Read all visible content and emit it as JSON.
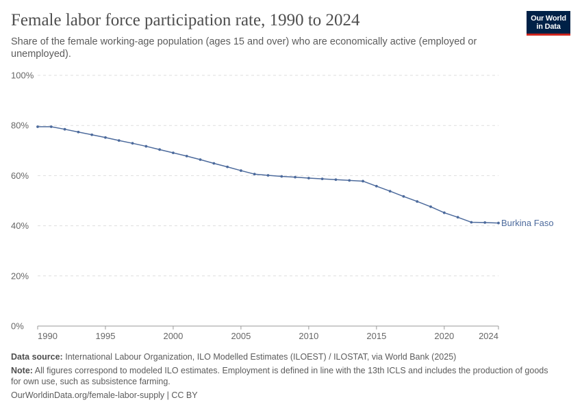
{
  "header": {
    "title": "Female labor force participation rate, 1990 to 2024",
    "subtitle": "Share of the female working-age population (ages 15 and over) who are economically active (employed or unemployed).",
    "logo_line1": "Our World",
    "logo_line2": "in Data"
  },
  "footer": {
    "source_label": "Data source:",
    "source_text": "International Labour Organization, ILO Modelled Estimates (ILOEST) / ILOSTAT, via World Bank (2025)",
    "note_label": "Note:",
    "note_text": "All figures correspond to modeled ILO estimates. Employment is defined in line with the 13th ICLS and includes the production of goods for own use, such as subsistence farming.",
    "url_text": "OurWorldinData.org/female-labor-supply | CC BY"
  },
  "colors": {
    "series": "#4c6a9c",
    "grid": "#dddddd",
    "axis": "#999999",
    "tick_text": "#666666",
    "logo_bg": "#002147",
    "logo_accent": "#ce261e"
  },
  "chart_data": {
    "type": "line",
    "title": "Female labor force participation rate, 1990 to 2024",
    "xlim": [
      1990,
      2024
    ],
    "ylim": [
      0,
      100
    ],
    "x_ticks": [
      1990,
      1995,
      2000,
      2005,
      2010,
      2015,
      2020,
      2024
    ],
    "y_ticks": [
      0,
      20,
      40,
      60,
      80,
      100
    ],
    "y_tick_labels": [
      "0%",
      "20%",
      "40%",
      "60%",
      "80%",
      "100%"
    ],
    "grid": "horizontal dashed",
    "legend": "inline label at line end",
    "series": [
      {
        "name": "Burkina Faso",
        "color": "#4c6a9c",
        "x": [
          1990,
          1991,
          1992,
          1993,
          1994,
          1995,
          1996,
          1997,
          1998,
          1999,
          2000,
          2001,
          2002,
          2003,
          2004,
          2005,
          2006,
          2007,
          2008,
          2009,
          2010,
          2011,
          2012,
          2013,
          2014,
          2015,
          2016,
          2017,
          2018,
          2019,
          2020,
          2021,
          2022,
          2023,
          2024
        ],
        "y": [
          79.5,
          79.5,
          78.5,
          77.4,
          76.3,
          75.2,
          74.0,
          72.9,
          71.7,
          70.4,
          69.1,
          67.8,
          66.4,
          64.9,
          63.5,
          62.0,
          60.6,
          60.1,
          59.7,
          59.4,
          59.0,
          58.7,
          58.4,
          58.1,
          57.8,
          55.8,
          53.8,
          51.7,
          49.7,
          47.6,
          45.2,
          43.4,
          41.4,
          41.3,
          41.1
        ]
      }
    ]
  }
}
